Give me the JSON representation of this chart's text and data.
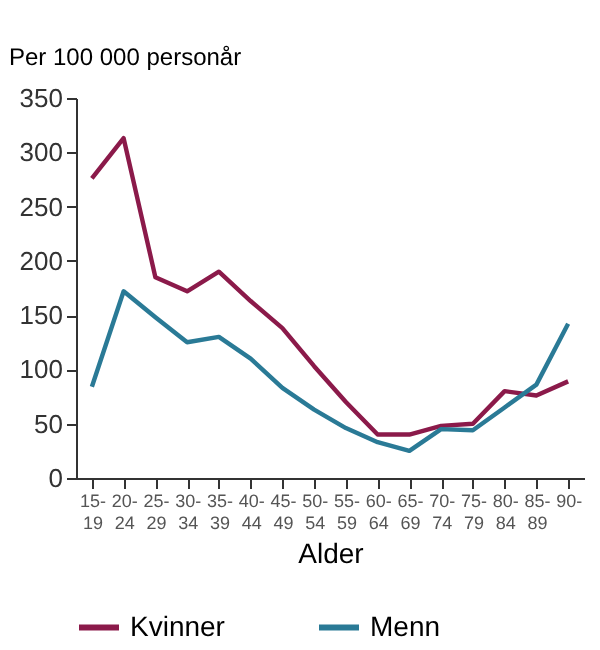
{
  "chart_data": {
    "type": "line",
    "ylabel": "Per 100 000 personår",
    "xlabel": "Alder",
    "categories": [
      "15-\n19",
      "20-\n24",
      "25-\n29",
      "30-\n34",
      "35-\n39",
      "40-\n44",
      "45-\n49",
      "50-\n54",
      "55-\n59",
      "60-\n64",
      "65-\n69",
      "70-\n74",
      "75-\n79",
      "80-\n84",
      "85-\n89",
      "90-"
    ],
    "series": [
      {
        "name": "Kvinner",
        "color": "#8b1a4a",
        "values": [
          276,
          313,
          185,
          172,
          190,
          163,
          138,
          103,
          70,
          40,
          40,
          48,
          50,
          80,
          76,
          89
        ]
      },
      {
        "name": "Menn",
        "color": "#2a7a96",
        "values": [
          84,
          172,
          148,
          125,
          130,
          110,
          83,
          63,
          46,
          33,
          25,
          45,
          44,
          65,
          86,
          142
        ]
      }
    ],
    "ylim": [
      0,
      350
    ],
    "yticks": [
      0,
      50,
      100,
      150,
      200,
      250,
      300,
      350
    ],
    "grid": false,
    "legend": "bottom",
    "marker": "none",
    "line_style": "solid"
  }
}
